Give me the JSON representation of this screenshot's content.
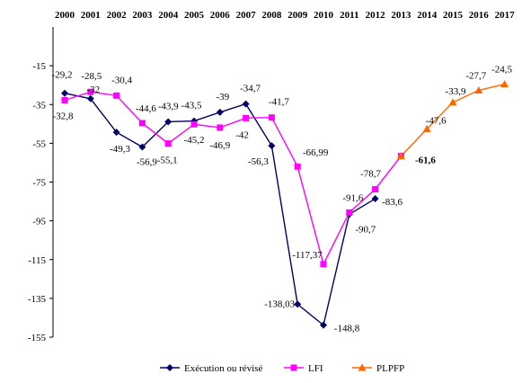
{
  "chart_data": {
    "type": "line",
    "x": [
      "2000",
      "2001",
      "2002",
      "2003",
      "2004",
      "2005",
      "2006",
      "2007",
      "2008",
      "2009",
      "2010",
      "2011",
      "2012",
      "2013",
      "2014",
      "2015",
      "2016",
      "2017"
    ],
    "ylim": [
      -155,
      5
    ],
    "yticks": [
      -15,
      -35,
      -55,
      -75,
      -95,
      -115,
      -135,
      -155
    ],
    "grid": false,
    "legend_position": "bottom",
    "series": [
      {
        "name": "Exécution ou révisé",
        "color": "#000066",
        "marker": "diamond",
        "values": [
          -29.2,
          -32,
          -49.3,
          -56.9,
          -43.9,
          -43.5,
          -39,
          -34.7,
          -56.3,
          -138.03,
          -148.8,
          -91.6,
          -83.6,
          null,
          null,
          null,
          null,
          null
        ],
        "labels": [
          "-29,2",
          "-32",
          "-49,3",
          "-56,9",
          "-43,9",
          "-43,5",
          "-39",
          "-34,7",
          "-56,3",
          "-138,03",
          "-148,8",
          "-91,6",
          "-83,6",
          null,
          null,
          null,
          null,
          null
        ]
      },
      {
        "name": "LFI",
        "color": "#FF00FF",
        "marker": "square",
        "values": [
          -32.8,
          -28.5,
          -30.4,
          -44.6,
          -55.1,
          -45.2,
          -46.9,
          -42,
          -41.7,
          -66.99,
          -117.37,
          -90.7,
          -78.7,
          -61.6,
          null,
          null,
          null,
          null
        ],
        "labels": [
          "-32,8",
          "-28,5",
          "-30,4",
          "-44,6",
          "-55,1",
          "-45,2",
          "-46,9",
          "-42",
          "-41,7",
          "-66,99",
          "-117,37",
          "-90,7",
          "-78,7",
          "-61,6",
          null,
          null,
          null,
          null
        ]
      },
      {
        "name": "PLPFP",
        "color": "#FF6600",
        "marker": "triangle",
        "values": [
          null,
          null,
          null,
          null,
          null,
          null,
          null,
          null,
          null,
          null,
          null,
          null,
          null,
          -61.6,
          -47.6,
          -33.9,
          -27.7,
          -24.5
        ],
        "labels": [
          null,
          null,
          null,
          null,
          null,
          null,
          null,
          null,
          null,
          null,
          null,
          null,
          null,
          null,
          "-47,6",
          "-33,9",
          "-27,7",
          "-24,5"
        ]
      }
    ]
  }
}
